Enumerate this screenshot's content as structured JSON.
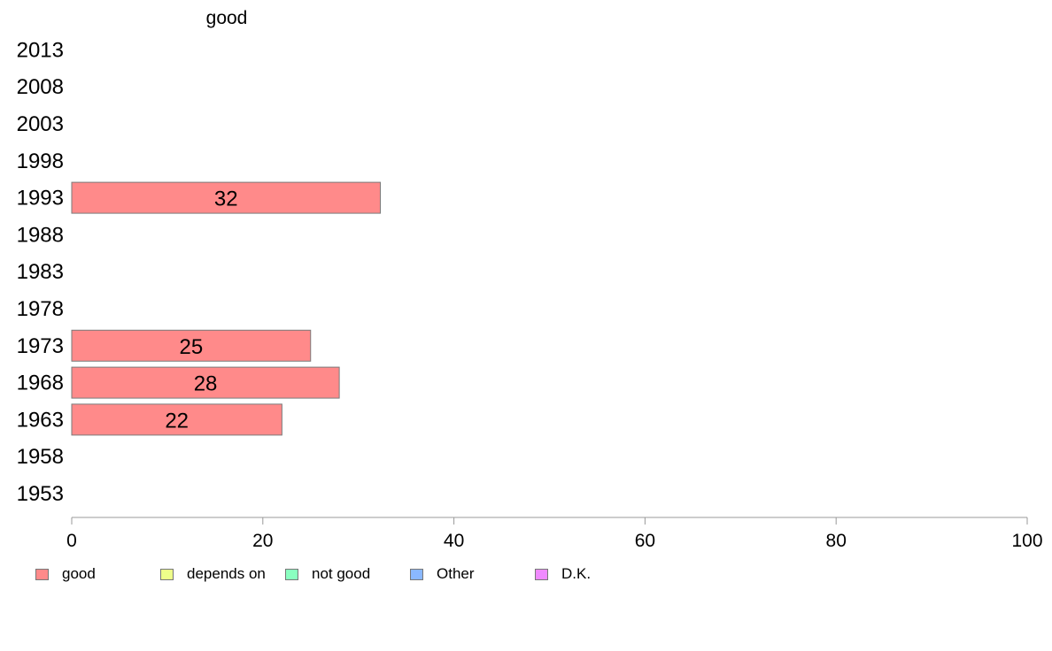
{
  "chart_data": {
    "type": "bar",
    "orientation": "horizontal",
    "title": "good",
    "categories": [
      "2013",
      "2008",
      "2003",
      "1998",
      "1993",
      "1988",
      "1983",
      "1978",
      "1973",
      "1968",
      "1963",
      "1958",
      "1953"
    ],
    "series": [
      {
        "name": "good",
        "color": "#ff8a8a",
        "values": [
          null,
          null,
          null,
          null,
          32.3,
          null,
          null,
          null,
          25,
          28,
          22,
          null,
          null
        ],
        "labels": [
          "",
          "",
          "",
          "",
          "32",
          "",
          "",
          "",
          "25",
          "28",
          "22",
          "",
          ""
        ]
      }
    ],
    "xlim": [
      0,
      100
    ],
    "xticks": [
      0,
      20,
      40,
      60,
      80,
      100
    ],
    "grid": false,
    "legend": {
      "position": "bottom-left",
      "entries": [
        {
          "name": "good",
          "color": "#ff8a8a"
        },
        {
          "name": "depends on",
          "color": "#eeff8a"
        },
        {
          "name": "not good",
          "color": "#8affc0"
        },
        {
          "name": "Other",
          "color": "#8ab8ff"
        },
        {
          "name": "D.K.",
          "color": "#f08aff"
        }
      ]
    }
  }
}
